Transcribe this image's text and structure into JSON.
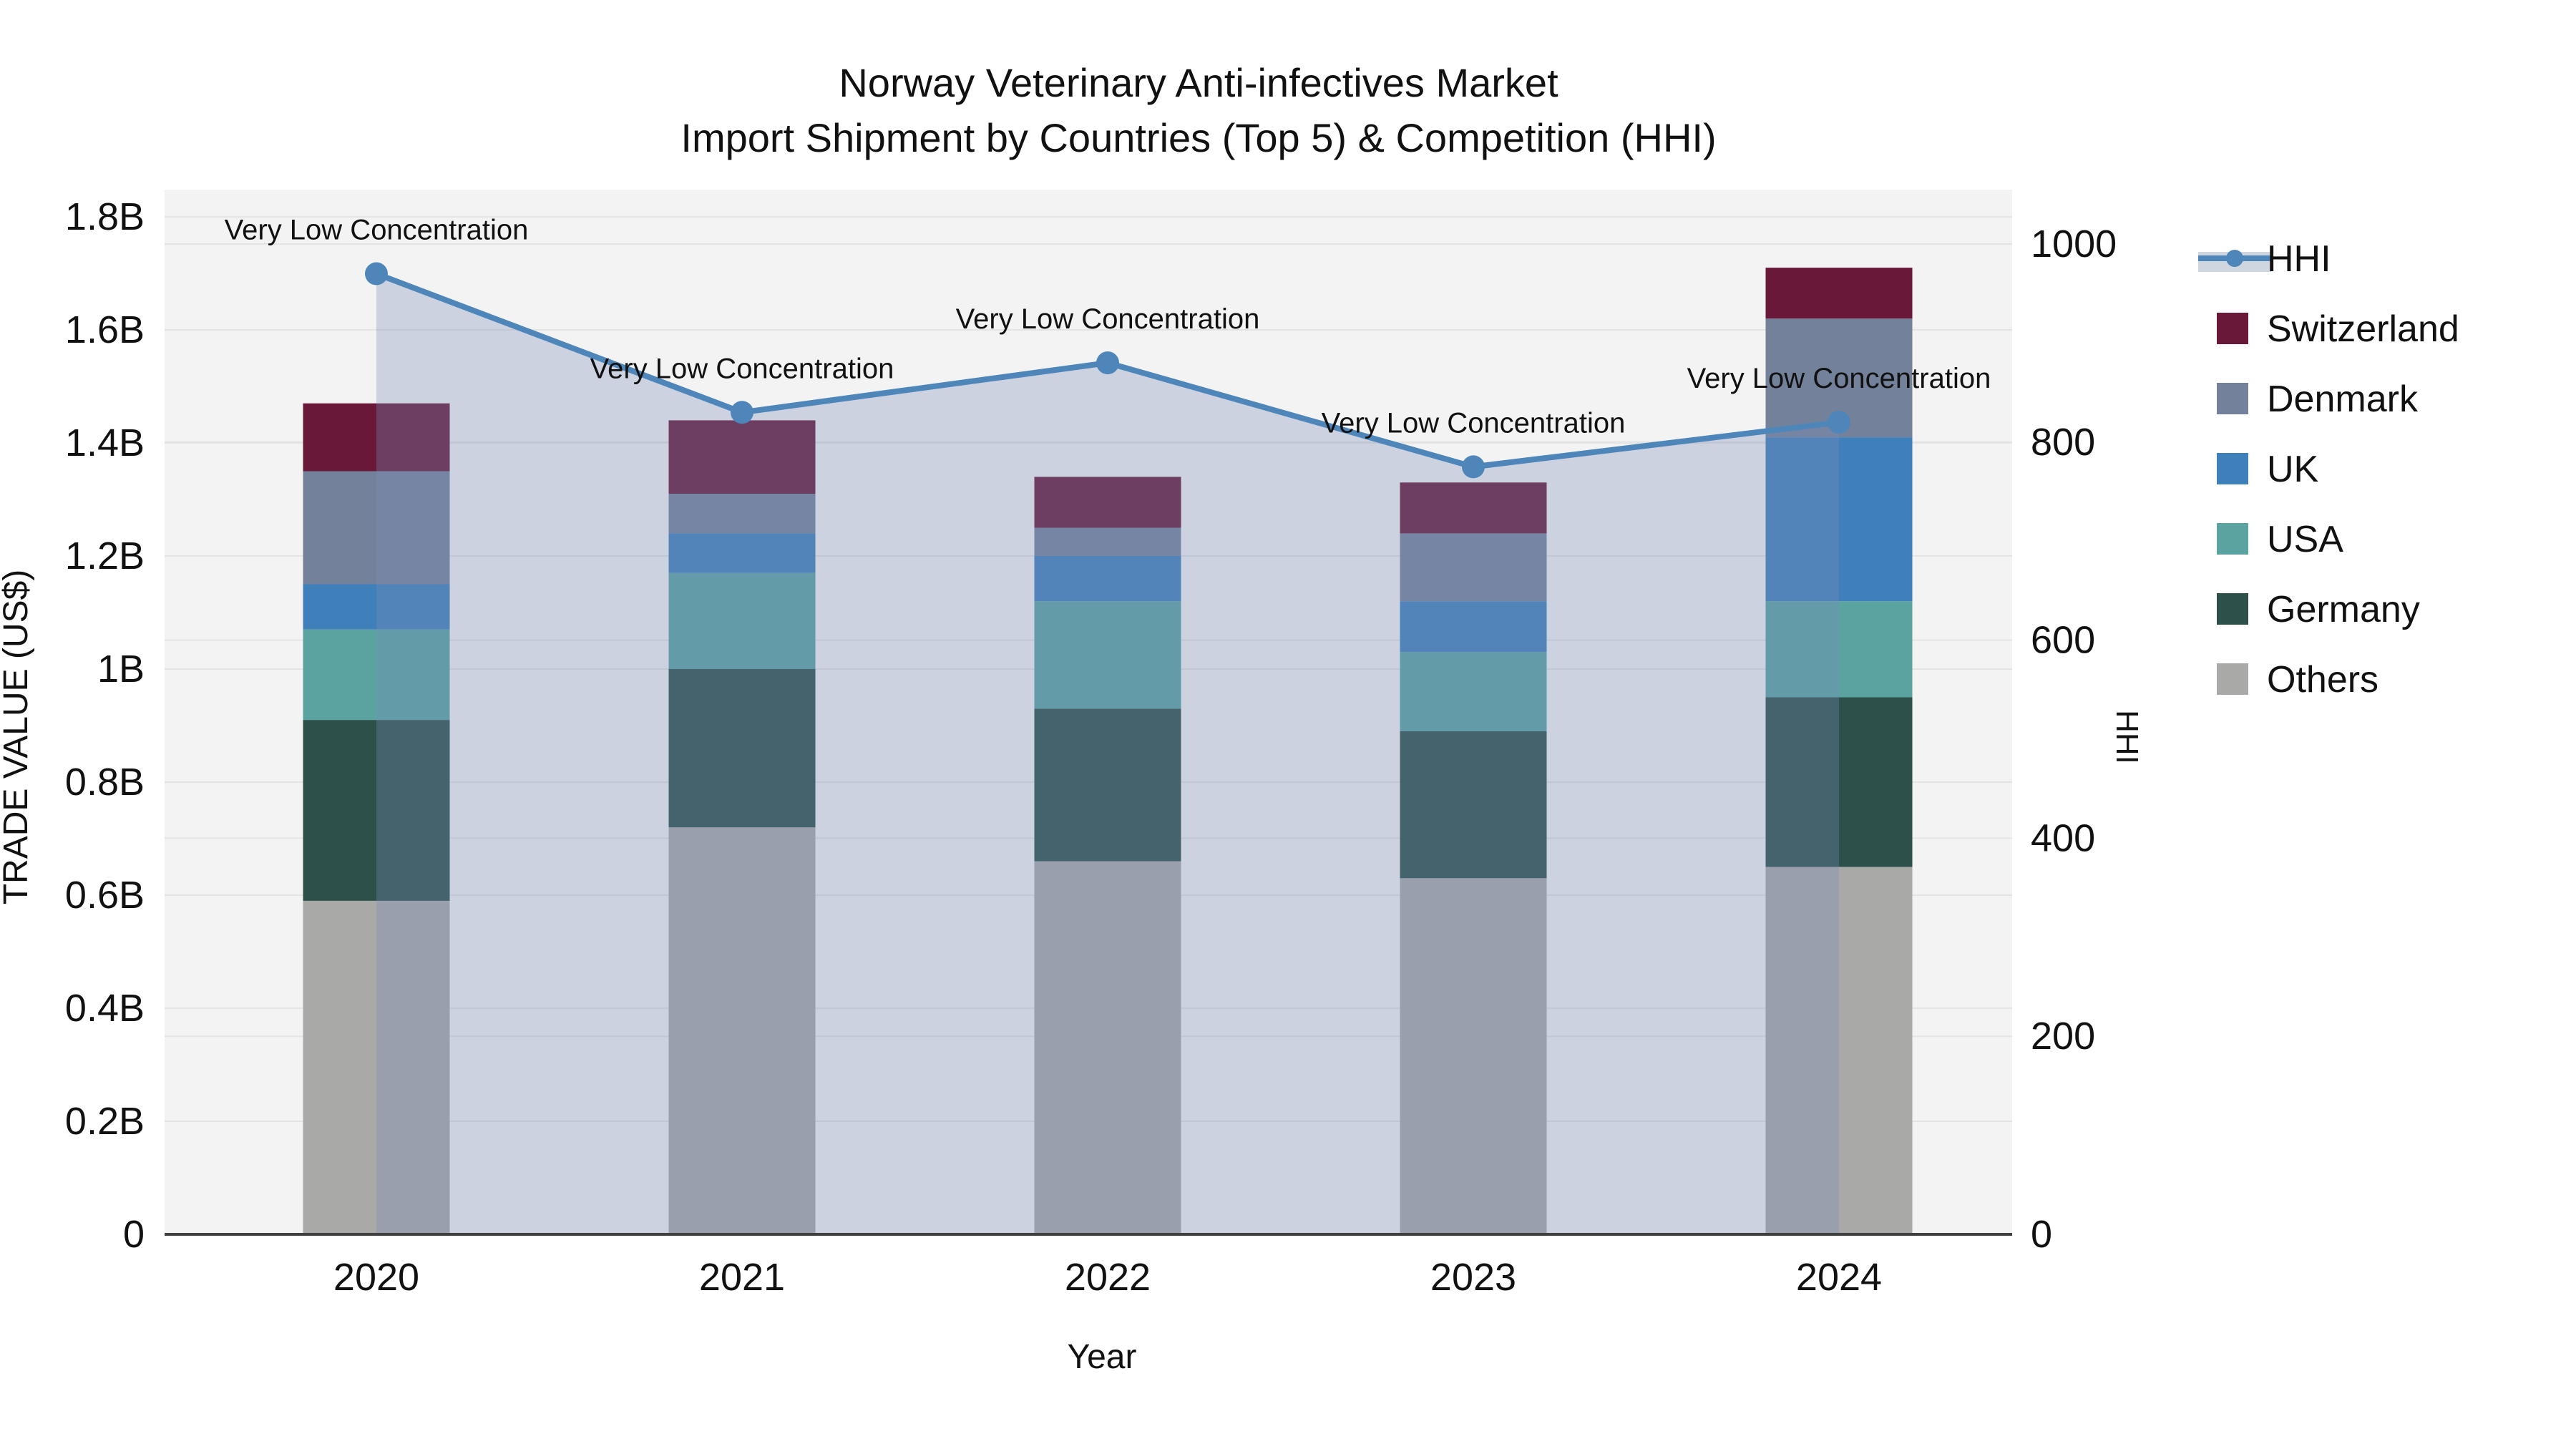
{
  "chart_data": {
    "type": "combo-stacked-bar-line",
    "title_lines": [
      "Norway Veterinary Anti-infectives Market",
      "Import Shipment by Countries (Top 5) & Competition (HHI)"
    ],
    "xlabel": "Year",
    "ylabel_left": "TRADE VALUE (US$)",
    "ylabel_right": "HHI",
    "categories": [
      "2020",
      "2021",
      "2022",
      "2023",
      "2024"
    ],
    "bar_unit": "billions USD",
    "stack_order_bottom_to_top": [
      "Others",
      "Germany",
      "USA",
      "UK",
      "Denmark",
      "Switzerland"
    ],
    "series": [
      {
        "name": "Others",
        "color": "#a9a9a7",
        "values": [
          0.59,
          0.72,
          0.66,
          0.63,
          0.65
        ]
      },
      {
        "name": "Germany",
        "color": "#2d504b",
        "values": [
          0.32,
          0.28,
          0.27,
          0.26,
          0.3
        ]
      },
      {
        "name": "USA",
        "color": "#5ba3a1",
        "values": [
          0.16,
          0.17,
          0.19,
          0.14,
          0.17
        ]
      },
      {
        "name": "UK",
        "color": "#4080ba",
        "values": [
          0.08,
          0.07,
          0.08,
          0.09,
          0.29
        ]
      },
      {
        "name": "Denmark",
        "color": "#73829a",
        "values": [
          0.2,
          0.07,
          0.05,
          0.12,
          0.21
        ]
      },
      {
        "name": "Switzerland",
        "color": "#69183a",
        "values": [
          0.12,
          0.13,
          0.09,
          0.09,
          0.09
        ]
      }
    ],
    "hhi": {
      "name": "HHI",
      "values": [
        970,
        830,
        880,
        775,
        820
      ],
      "line_color": "#4e86ba",
      "area_color": "rgba(122,141,185,0.32)"
    },
    "annotations": [
      "Very Low Concentration",
      "Very Low Concentration",
      "Very Low Concentration",
      "Very Low Concentration",
      "Very Low Concentration"
    ],
    "left_axis": {
      "tick_labels_bottom_to_top": [
        "0",
        "0.2B",
        "0.4B",
        "0.6B",
        "0.8B",
        "1B",
        "1.2B",
        "1.4B",
        "1.6B",
        "1.8B"
      ],
      "min": 0,
      "max": 1.8
    },
    "right_axis": {
      "tick_labels_bottom_to_top": [
        "0",
        "200",
        "400",
        "600",
        "800",
        "1000"
      ],
      "min": 0,
      "max": 1000
    },
    "legend": [
      {
        "key": "hhi",
        "label": "HHI",
        "type": "line",
        "color": "#4e86ba",
        "band_color": "#cfd6e0"
      },
      {
        "key": "switzerland",
        "label": "Switzerland",
        "type": "swatch",
        "color": "#69183a"
      },
      {
        "key": "denmark",
        "label": "Denmark",
        "type": "swatch",
        "color": "#73829a"
      },
      {
        "key": "uk",
        "label": "UK",
        "type": "swatch",
        "color": "#4080ba"
      },
      {
        "key": "usa",
        "label": "USA",
        "type": "swatch",
        "color": "#5ba3a1"
      },
      {
        "key": "germany",
        "label": "Germany",
        "type": "swatch",
        "color": "#2d504b"
      },
      {
        "key": "others",
        "label": "Others",
        "type": "swatch",
        "color": "#a9a9a7"
      }
    ],
    "plot_bg_color": "#f3f3f3",
    "gridline_color": "#e4e4e4",
    "axis_line_color": "#3f3f3f",
    "grid_on": true,
    "legend_position": "right"
  }
}
